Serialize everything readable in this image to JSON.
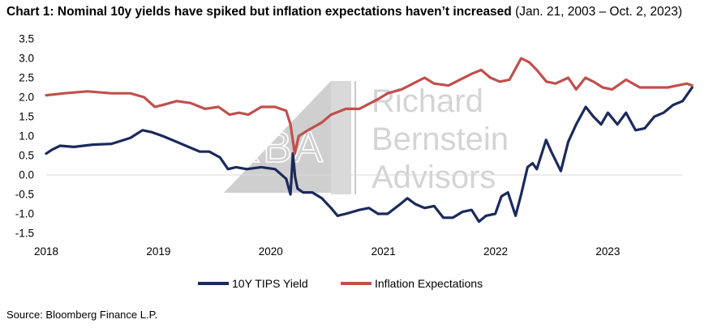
{
  "title": {
    "bold": "Chart 1: Nominal 10y yields have spiked but inflation expectations haven’t increased",
    "range": "(Jan. 21, 2003 – Oct. 2, 2023)"
  },
  "source": "Source: Bloomberg Finance L.P.",
  "watermark": {
    "logo": "RBA",
    "lines": [
      "Richard",
      "Bernstein",
      "Advisors"
    ]
  },
  "chart_data": {
    "type": "line",
    "title": "Chart 1: Nominal 10y yields have spiked but inflation expectations haven’t increased (Jan. 21, 2003 – Oct. 2, 2023)",
    "xlabel": "",
    "ylabel": "",
    "x_ticks": [
      "2018",
      "2019",
      "2020",
      "2021",
      "2022",
      "2023"
    ],
    "y_ticks": [
      "3.5",
      "3.0",
      "2.5",
      "2.0",
      "1.5",
      "1.0",
      "0.5",
      "0.0",
      "-0.5",
      "-1.0",
      "-1.5"
    ],
    "ylim": [
      -1.5,
      3.5
    ],
    "xlim": [
      "2018-01-01",
      "2023-10-02"
    ],
    "grid": false,
    "legend_position": "bottom",
    "series": [
      {
        "name": "10Y TIPS Yield",
        "color": "#1b2a5c",
        "points": [
          [
            "2018-01-01",
            0.55
          ],
          [
            "2018-01-20",
            0.65
          ],
          [
            "2018-02-15",
            0.75
          ],
          [
            "2018-04-01",
            0.72
          ],
          [
            "2018-06-01",
            0.78
          ],
          [
            "2018-08-01",
            0.8
          ],
          [
            "2018-10-01",
            0.95
          ],
          [
            "2018-11-10",
            1.15
          ],
          [
            "2018-12-10",
            1.1
          ],
          [
            "2019-01-15",
            1.0
          ],
          [
            "2019-03-01",
            0.85
          ],
          [
            "2019-04-15",
            0.7
          ],
          [
            "2019-05-15",
            0.6
          ],
          [
            "2019-06-15",
            0.6
          ],
          [
            "2019-07-20",
            0.45
          ],
          [
            "2019-08-15",
            0.15
          ],
          [
            "2019-09-10",
            0.2
          ],
          [
            "2019-10-15",
            0.15
          ],
          [
            "2019-12-01",
            0.2
          ],
          [
            "2020-01-15",
            0.15
          ],
          [
            "2020-02-20",
            -0.1
          ],
          [
            "2020-03-05",
            -0.5
          ],
          [
            "2020-03-13",
            0.55
          ],
          [
            "2020-03-20",
            -0.05
          ],
          [
            "2020-03-28",
            -0.35
          ],
          [
            "2020-04-15",
            -0.45
          ],
          [
            "2020-05-15",
            -0.45
          ],
          [
            "2020-06-15",
            -0.6
          ],
          [
            "2020-07-15",
            -0.85
          ],
          [
            "2020-08-05",
            -1.05
          ],
          [
            "2020-09-01",
            -1.0
          ],
          [
            "2020-10-15",
            -0.9
          ],
          [
            "2020-11-15",
            -0.85
          ],
          [
            "2020-12-15",
            -1.0
          ],
          [
            "2021-01-15",
            -1.0
          ],
          [
            "2021-02-25",
            -0.75
          ],
          [
            "2021-03-20",
            -0.6
          ],
          [
            "2021-04-15",
            -0.75
          ],
          [
            "2021-05-15",
            -0.85
          ],
          [
            "2021-06-15",
            -0.8
          ],
          [
            "2021-07-15",
            -1.1
          ],
          [
            "2021-08-15",
            -1.1
          ],
          [
            "2021-09-15",
            -0.95
          ],
          [
            "2021-10-15",
            -0.9
          ],
          [
            "2021-11-08",
            -1.2
          ],
          [
            "2021-12-01",
            -1.05
          ],
          [
            "2021-12-31",
            -1.0
          ],
          [
            "2022-01-20",
            -0.55
          ],
          [
            "2022-02-10",
            -0.45
          ],
          [
            "2022-03-07",
            -1.05
          ],
          [
            "2022-03-25",
            -0.5
          ],
          [
            "2022-04-15",
            0.2
          ],
          [
            "2022-05-01",
            0.3
          ],
          [
            "2022-05-15",
            0.15
          ],
          [
            "2022-06-14",
            0.9
          ],
          [
            "2022-07-01",
            0.6
          ],
          [
            "2022-08-01",
            0.1
          ],
          [
            "2022-08-25",
            0.85
          ],
          [
            "2022-09-20",
            1.3
          ],
          [
            "2022-10-21",
            1.75
          ],
          [
            "2022-11-15",
            1.5
          ],
          [
            "2022-12-10",
            1.3
          ],
          [
            "2023-01-01",
            1.6
          ],
          [
            "2023-02-01",
            1.3
          ],
          [
            "2023-03-01",
            1.6
          ],
          [
            "2023-04-01",
            1.15
          ],
          [
            "2023-05-01",
            1.2
          ],
          [
            "2023-06-01",
            1.5
          ],
          [
            "2023-07-01",
            1.6
          ],
          [
            "2023-08-01",
            1.8
          ],
          [
            "2023-09-01",
            1.9
          ],
          [
            "2023-10-02",
            2.25
          ]
        ]
      },
      {
        "name": "Inflation Expectations",
        "color": "#c0504d",
        "points": [
          [
            "2018-01-01",
            2.05
          ],
          [
            "2018-03-01",
            2.1
          ],
          [
            "2018-05-15",
            2.15
          ],
          [
            "2018-08-01",
            2.1
          ],
          [
            "2018-10-01",
            2.1
          ],
          [
            "2018-11-15",
            2.0
          ],
          [
            "2018-12-20",
            1.75
          ],
          [
            "2019-01-15",
            1.8
          ],
          [
            "2019-03-01",
            1.9
          ],
          [
            "2019-04-15",
            1.85
          ],
          [
            "2019-06-01",
            1.7
          ],
          [
            "2019-07-15",
            1.75
          ],
          [
            "2019-08-20",
            1.55
          ],
          [
            "2019-09-20",
            1.6
          ],
          [
            "2019-10-20",
            1.55
          ],
          [
            "2019-12-01",
            1.75
          ],
          [
            "2020-01-15",
            1.75
          ],
          [
            "2020-02-20",
            1.65
          ],
          [
            "2020-03-05",
            1.3
          ],
          [
            "2020-03-19",
            0.55
          ],
          [
            "2020-04-01",
            1.0
          ],
          [
            "2020-05-01",
            1.15
          ],
          [
            "2020-06-15",
            1.35
          ],
          [
            "2020-07-15",
            1.55
          ],
          [
            "2020-09-01",
            1.7
          ],
          [
            "2020-10-15",
            1.7
          ],
          [
            "2020-12-15",
            1.95
          ],
          [
            "2021-01-15",
            2.1
          ],
          [
            "2021-03-01",
            2.2
          ],
          [
            "2021-05-15",
            2.5
          ],
          [
            "2021-06-15",
            2.35
          ],
          [
            "2021-08-01",
            2.3
          ],
          [
            "2021-10-15",
            2.6
          ],
          [
            "2021-11-15",
            2.7
          ],
          [
            "2021-12-15",
            2.5
          ],
          [
            "2022-01-15",
            2.4
          ],
          [
            "2022-02-15",
            2.45
          ],
          [
            "2022-03-25",
            3.0
          ],
          [
            "2022-04-20",
            2.9
          ],
          [
            "2022-05-15",
            2.7
          ],
          [
            "2022-06-15",
            2.4
          ],
          [
            "2022-07-15",
            2.35
          ],
          [
            "2022-08-25",
            2.5
          ],
          [
            "2022-09-20",
            2.2
          ],
          [
            "2022-10-20",
            2.5
          ],
          [
            "2022-11-15",
            2.4
          ],
          [
            "2022-12-15",
            2.25
          ],
          [
            "2023-01-15",
            2.2
          ],
          [
            "2023-03-01",
            2.45
          ],
          [
            "2023-04-15",
            2.25
          ],
          [
            "2023-06-01",
            2.25
          ],
          [
            "2023-07-15",
            2.25
          ],
          [
            "2023-08-15",
            2.3
          ],
          [
            "2023-09-15",
            2.35
          ],
          [
            "2023-10-02",
            2.3
          ]
        ]
      }
    ]
  }
}
